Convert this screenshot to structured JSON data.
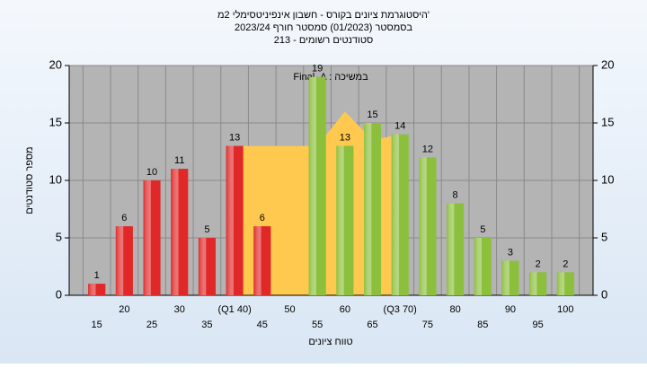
{
  "chart_data": {
    "type": "bar",
    "title": "היסטוגרמת ציונים בקורס - חשבון אינפיניטסימלי 2מ'",
    "subtitle": "בסמסטר  (01/2023)  סמסטר חורף 2023/24",
    "subtitle2": "סטודנטים רשומים - 213",
    "annotation": "Final_A : במשיכה",
    "x_label": "טווח ציונים",
    "y_label": "מספר סטודנטים",
    "categories": [
      "15",
      "20",
      "25",
      "30",
      "35",
      "(Q1 40)",
      "45",
      "50",
      "55",
      "60",
      "65",
      "(Q3 70)",
      "75",
      "80",
      "85",
      "90",
      "95",
      "100"
    ],
    "values": [
      1,
      6,
      10,
      11,
      5,
      13,
      6,
      null,
      19,
      13,
      15,
      14,
      12,
      8,
      5,
      3,
      2,
      2
    ],
    "colors": [
      "#e02828",
      "#e02828",
      "#e02828",
      "#e02828",
      "#e02828",
      "#e02828",
      "#e02828",
      null,
      "#8cbf3c",
      "#8cbf3c",
      "#8cbf3c",
      "#8cbf3c",
      "#8cbf3c",
      "#8cbf3c",
      "#8cbf3c",
      "#8cbf3c",
      "#8cbf3c",
      "#8cbf3c"
    ],
    "area": {
      "color": "#ffc94f",
      "x": [
        40,
        55,
        60,
        65,
        70
      ],
      "values": [
        13,
        13,
        16,
        13.5,
        14
      ]
    },
    "ylim": [
      0,
      20
    ],
    "yticks": [
      0,
      5,
      10,
      15,
      20
    ],
    "y2lim": [
      0,
      20
    ],
    "y2ticks": [
      0,
      5,
      10,
      15,
      20
    ],
    "grid": true
  }
}
